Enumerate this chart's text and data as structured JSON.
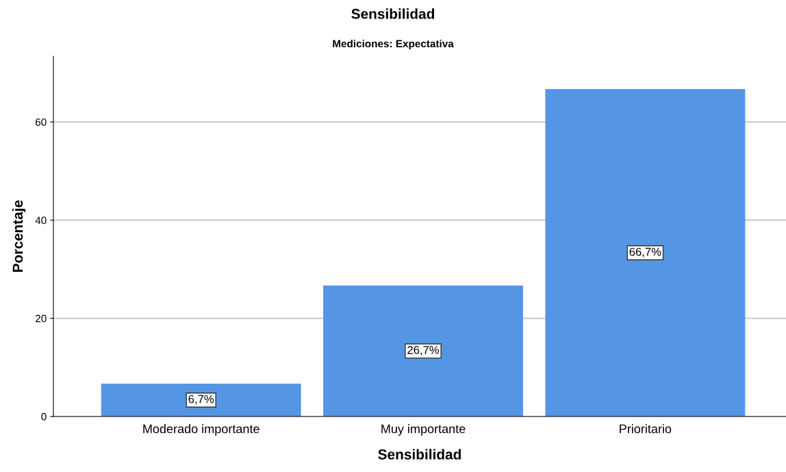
{
  "chart_data": {
    "type": "bar",
    "title": "Sensibilidad",
    "subtitle": "Mediciones: Expectativa",
    "xlabel": "Sensibilidad",
    "ylabel": "Porcentaje",
    "categories": [
      "Moderado importante",
      "Muy importante",
      "Prioritario"
    ],
    "values": [
      6.7,
      26.7,
      66.7
    ],
    "value_labels": [
      "6,7%",
      "26,7%",
      "66,7%"
    ],
    "color": "#5596e4",
    "ylim": [
      0,
      73.4
    ],
    "yticks": [
      0,
      20,
      40,
      60
    ],
    "grid": "y",
    "legend": false
  }
}
